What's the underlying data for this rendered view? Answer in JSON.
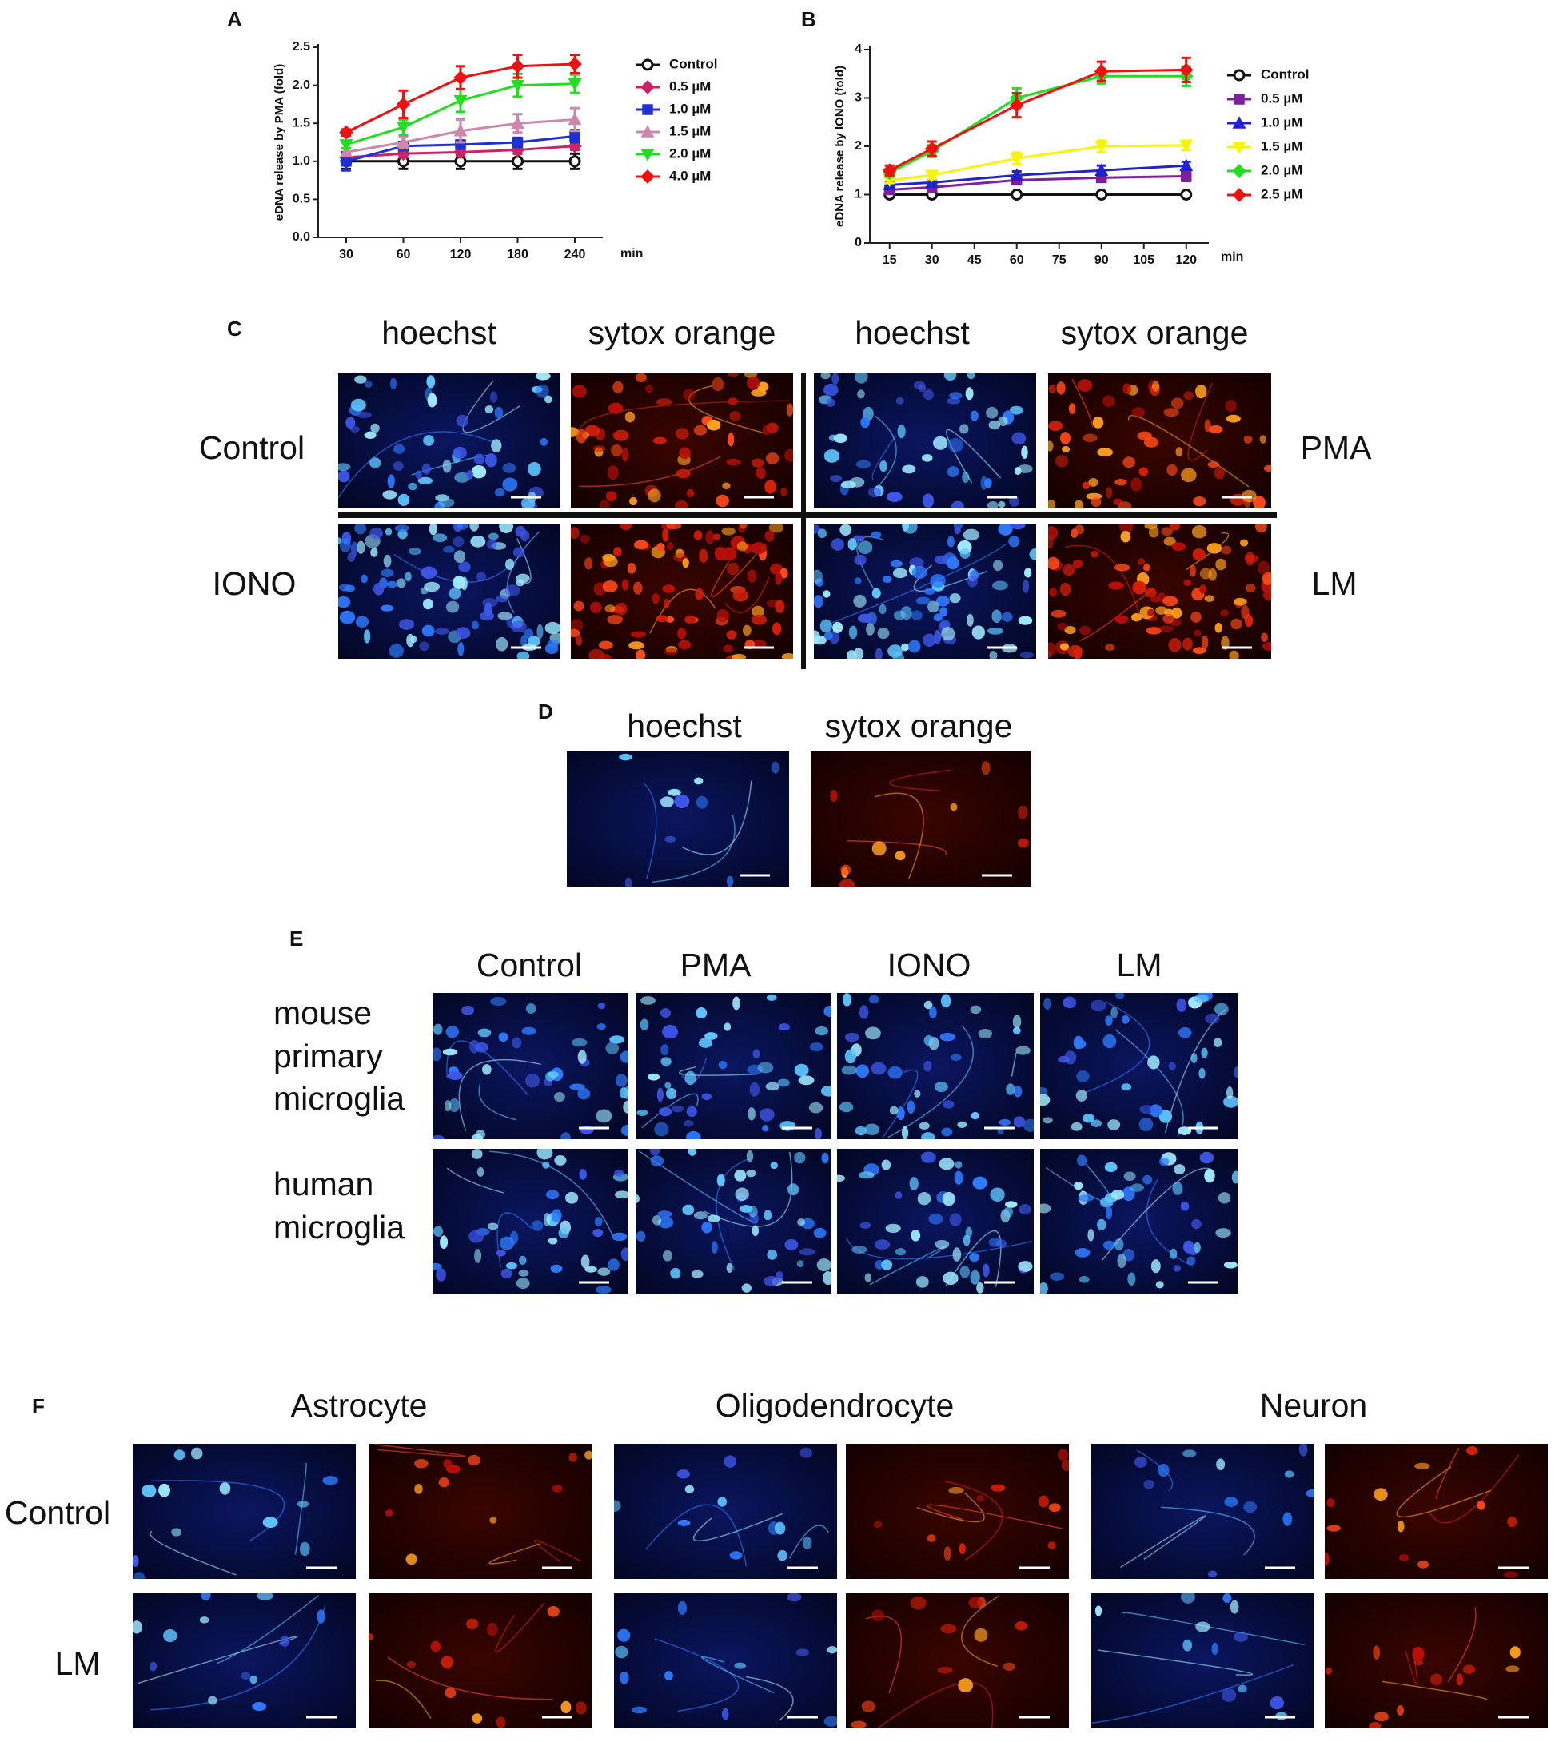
{
  "chart_data": [
    {
      "type": "line",
      "panel": "A",
      "y_label": "eDNA release by PMA (fold)",
      "x_unit": "min",
      "categories": [
        "30",
        "60",
        "120",
        "180",
        "240"
      ],
      "ylim": [
        0,
        2.5
      ],
      "yticks": [
        {
          "value": 0,
          "label": "0.0"
        },
        0.5,
        {
          "value": 1,
          "label": "1.0"
        },
        1.5,
        {
          "value": 2,
          "label": "2.0"
        },
        2.5
      ],
      "series": [
        {
          "name": "Control",
          "color": "#111111",
          "marker": "circle",
          "values": [
            1.0,
            1.0,
            1.0,
            1.0,
            1.0
          ],
          "errors": [
            0.1,
            0.1,
            0.1,
            0.1,
            0.1
          ]
        },
        {
          "name": "0.5 µM",
          "color": "#cc2266",
          "marker": "diamond",
          "values": [
            1.05,
            1.1,
            1.12,
            1.15,
            1.2
          ],
          "errors": [
            0.05,
            0.05,
            0.05,
            0.05,
            0.05
          ]
        },
        {
          "name": "1.0 µM",
          "color": "#1f2fd6",
          "marker": "square",
          "values": [
            1.0,
            1.2,
            1.22,
            1.25,
            1.33
          ],
          "errors": [
            0.12,
            0.05,
            0.05,
            0.06,
            0.08
          ]
        },
        {
          "name": "1.5 µM",
          "color": "#cc88aa",
          "marker": "triangle",
          "values": [
            1.12,
            1.25,
            1.4,
            1.5,
            1.55
          ],
          "errors": [
            0.05,
            0.08,
            0.15,
            0.12,
            0.15
          ]
        },
        {
          "name": "2.0 µM",
          "color": "#22dd22",
          "marker": "triangle-down",
          "values": [
            1.22,
            1.45,
            1.8,
            2.0,
            2.02
          ],
          "errors": [
            0.05,
            0.1,
            0.15,
            0.15,
            0.12
          ]
        },
        {
          "name": "4.0 µM",
          "color": "#ee1111",
          "marker": "diamond",
          "values": [
            1.38,
            1.75,
            2.1,
            2.25,
            2.28
          ],
          "errors": [
            0.04,
            0.18,
            0.15,
            0.15,
            0.12
          ]
        }
      ]
    },
    {
      "type": "line",
      "panel": "B",
      "y_label": "eDNA release by IONO (fold)",
      "x_unit": "min",
      "x": [
        15,
        30,
        60,
        90,
        120
      ],
      "xlim": [
        8,
        128
      ],
      "xticks": [
        15,
        30,
        45,
        60,
        75,
        90,
        105,
        120
      ],
      "ylim": [
        0,
        4
      ],
      "yticks": [
        0,
        1,
        2,
        3,
        4
      ],
      "series": [
        {
          "name": "Control",
          "color": "#111111",
          "marker": "circle",
          "values": [
            1.0,
            1.0,
            1.0,
            1.0,
            1.0
          ],
          "errors": [
            0.05,
            0.05,
            0.05,
            0.05,
            0.05
          ]
        },
        {
          "name": "0.5 µM",
          "color": "#7f1f9f",
          "marker": "square",
          "values": [
            1.1,
            1.15,
            1.3,
            1.35,
            1.38
          ],
          "errors": [
            0.05,
            0.05,
            0.08,
            0.08,
            0.1
          ]
        },
        {
          "name": "1.0 µM",
          "color": "#2222cc",
          "marker": "triangle",
          "values": [
            1.2,
            1.25,
            1.4,
            1.5,
            1.6
          ],
          "errors": [
            0.05,
            0.05,
            0.08,
            0.1,
            0.08
          ]
        },
        {
          "name": "1.5 µM",
          "color": "#f5f500",
          "marker": "triangle-down",
          "values": [
            1.3,
            1.4,
            1.75,
            2.0,
            2.02
          ],
          "errors": [
            0.06,
            0.08,
            0.12,
            0.12,
            0.1
          ]
        },
        {
          "name": "2.0 µM",
          "color": "#22dd22",
          "marker": "diamond",
          "values": [
            1.45,
            1.9,
            3.0,
            3.45,
            3.45
          ],
          "errors": [
            0.08,
            0.12,
            0.2,
            0.15,
            0.2
          ]
        },
        {
          "name": "2.5 µM",
          "color": "#ee1111",
          "marker": "diamond",
          "values": [
            1.5,
            1.95,
            2.85,
            3.55,
            3.58
          ],
          "errors": [
            0.1,
            0.15,
            0.25,
            0.2,
            0.25
          ]
        }
      ]
    }
  ],
  "panel_c": {
    "label": "C",
    "columns": [
      "hoechst",
      "sytox orange",
      "hoechst",
      "sytox orange"
    ],
    "rows_left": [
      "Control",
      "IONO"
    ],
    "rows_right": [
      "PMA",
      "LM"
    ]
  },
  "panel_d": {
    "label": "D",
    "columns": [
      "hoechst",
      "sytox orange"
    ]
  },
  "panel_e": {
    "label": "E",
    "columns": [
      "Control",
      "PMA",
      "IONO",
      "LM"
    ],
    "rows": [
      [
        "mouse",
        "primary",
        "microglia"
      ],
      [
        "human",
        "microglia"
      ]
    ]
  },
  "panel_f": {
    "label": "F",
    "groups": [
      "Astrocyte",
      "Oligodendrocyte",
      "Neuron"
    ],
    "rows": [
      "Control",
      "LM"
    ]
  }
}
